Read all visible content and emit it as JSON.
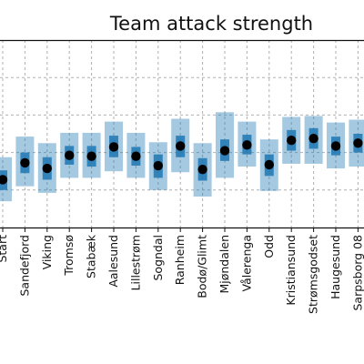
{
  "chart_data": {
    "type": "box",
    "title": "Team attack strength",
    "xlabel": "",
    "ylabel": "",
    "grid": true,
    "categories": [
      "Start",
      "Sandefjord",
      "Viking",
      "Tromsø",
      "Stabæk",
      "Aalesund",
      "Lillestrøm",
      "Sogndal",
      "Ranheim",
      "Bodø/Glimt",
      "Mjøndalen",
      "Vålerenga",
      "Odd",
      "Kristiansund",
      "Strømsgodset",
      "Haugesund",
      "Sarpsborg 08"
    ],
    "series": [
      {
        "mean": [
          -0.29,
          -0.11,
          -0.17,
          -0.03,
          -0.04,
          0.06,
          -0.04,
          -0.14,
          0.07,
          -0.18,
          0.02,
          0.08,
          -0.13,
          0.13,
          0.15,
          0.07,
          0.1
        ],
        "q25": [
          -0.4,
          -0.22,
          -0.29,
          -0.13,
          -0.15,
          -0.05,
          -0.14,
          -0.27,
          -0.05,
          -0.3,
          -0.09,
          -0.02,
          -0.25,
          0.02,
          0.04,
          -0.03,
          0.0
        ],
        "q75": [
          -0.19,
          0.0,
          -0.05,
          0.07,
          0.07,
          0.18,
          0.06,
          -0.02,
          0.18,
          -0.06,
          0.14,
          0.19,
          -0.02,
          0.24,
          0.26,
          0.17,
          0.2
        ],
        "q05": [
          -0.52,
          -0.36,
          -0.43,
          -0.27,
          -0.27,
          -0.2,
          -0.27,
          -0.4,
          -0.21,
          -0.47,
          -0.27,
          -0.15,
          -0.41,
          -0.12,
          -0.12,
          -0.17,
          -0.15
        ],
        "q95": [
          -0.05,
          0.17,
          0.1,
          0.21,
          0.21,
          0.33,
          0.21,
          0.11,
          0.36,
          0.1,
          0.43,
          0.33,
          0.14,
          0.38,
          0.39,
          0.32,
          0.35
        ]
      }
    ],
    "ylim": [
      -0.8,
      1.2
    ],
    "yticks": [
      -0.4,
      0.0,
      0.4,
      0.8
    ]
  }
}
